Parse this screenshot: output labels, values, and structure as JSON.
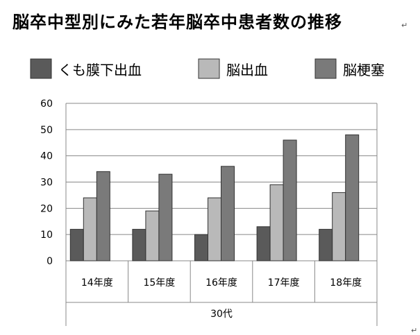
{
  "title": "脳卒中型別にみた若年脳卒中患者数の推移",
  "title_mark": "↵",
  "corner_mark": "↵",
  "chart_data": {
    "type": "bar",
    "categories": [
      "14年度",
      "15年度",
      "16年度",
      "17年度",
      "18年度"
    ],
    "group_label": "30代",
    "series": [
      {
        "name": "くも膜下出血",
        "values": [
          12,
          12,
          10,
          13,
          12
        ],
        "color": "#5a5a5a"
      },
      {
        "name": "脳出血",
        "values": [
          24,
          19,
          24,
          29,
          26
        ],
        "color": "#b9b9b9"
      },
      {
        "name": "脳梗塞",
        "values": [
          34,
          33,
          36,
          46,
          48
        ],
        "color": "#7a7a7a"
      }
    ],
    "yticks": [
      0,
      10,
      20,
      30,
      40,
      50,
      60
    ],
    "ylim": [
      0,
      60
    ],
    "grid": true,
    "legend_position": "top"
  }
}
